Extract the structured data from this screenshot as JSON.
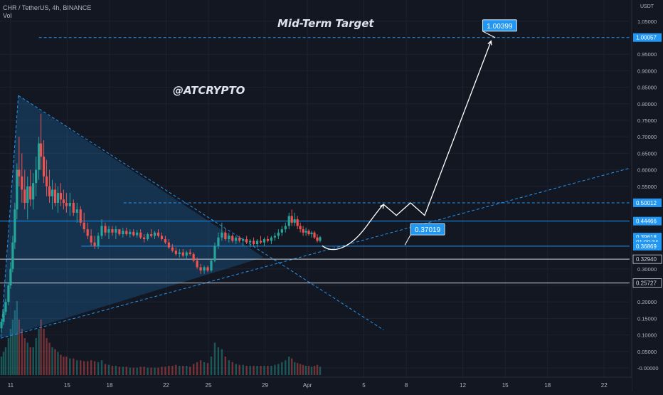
{
  "header": {
    "symbol_line": "CHR / TetherUS, 4h, BINANCE",
    "vol_label": "Vol"
  },
  "watermarks": {
    "title": "Mid-Term Target",
    "handle": "@ATCRYPTO"
  },
  "colors": {
    "background": "#131722",
    "up": "#26a69a",
    "down": "#ef5350",
    "drawing_blue": "#2196f3",
    "white": "#ffffff",
    "axis_text": "#b2b5be"
  },
  "chart_data": {
    "type": "candlestick",
    "xlabel": "",
    "ylabel": "USDT",
    "y_unit_label": "USDT",
    "ylim": [
      -0.02,
      1.1
    ],
    "y_ticks": [
      "1.05000",
      "0.95000",
      "0.90000",
      "0.85000",
      "0.80000",
      "0.75000",
      "0.70000",
      "0.65000",
      "0.60000",
      "0.55000",
      "0.30000",
      "0.25000",
      "0.20000",
      "0.15000",
      "0.10000",
      "0.05000",
      "-0.00000"
    ],
    "y_tick_values": [
      1.05,
      0.95,
      0.9,
      0.85,
      0.8,
      0.75,
      0.7,
      0.65,
      0.6,
      0.55,
      0.3,
      0.25,
      0.2,
      0.15,
      0.1,
      0.05,
      0.0
    ],
    "x_ticks": [
      {
        "label": "11",
        "day": 11
      },
      {
        "label": "15",
        "day": 15
      },
      {
        "label": "18",
        "day": 18
      },
      {
        "label": "22",
        "day": 22
      },
      {
        "label": "25",
        "day": 25
      },
      {
        "label": "29",
        "day": 29
      },
      {
        "label": "Apr",
        "day": 32
      },
      {
        "label": "5",
        "day": 36
      },
      {
        "label": "8",
        "day": 39
      },
      {
        "label": "12",
        "day": 43
      },
      {
        "label": "15",
        "day": 46
      },
      {
        "label": "18",
        "day": 49
      },
      {
        "label": "22",
        "day": 53
      }
    ],
    "x_day_range": [
      10.25,
      54.8
    ],
    "price_labels": [
      {
        "text": "1.00057",
        "value": 1.00057,
        "style": "blue"
      },
      {
        "text": "0.50012",
        "value": 0.50012,
        "style": "blue"
      },
      {
        "text": "0.44466",
        "value": 0.44466,
        "style": "blue"
      },
      {
        "text": "0.39618",
        "value": 0.39618,
        "style": "blue"
      },
      {
        "text": "01:00:34",
        "value": 0.382,
        "style": "blue"
      },
      {
        "text": "0.36869",
        "value": 0.36869,
        "style": "blue"
      },
      {
        "text": "0.32940",
        "value": 0.3294,
        "style": "white"
      },
      {
        "text": "0.25727",
        "value": 0.25727,
        "style": "white"
      }
    ],
    "annotations": [
      {
        "text": "1.00399",
        "price": 1.00399,
        "box_day": 44.5,
        "box_price": 1.037,
        "anchor_day": 45.3,
        "anchor_price": 1.0
      },
      {
        "text": "0.37019",
        "price": 0.37019,
        "box_day": 39.4,
        "box_price": 0.42,
        "anchor_day": 38.9,
        "anchor_price": 0.372
      }
    ],
    "horizontal_levels": [
      {
        "price": 1.00057,
        "style": "blue-dashed",
        "from_day": 13.0
      },
      {
        "price": 0.50012,
        "style": "blue-dashed",
        "from_day": 19.0
      },
      {
        "price": 0.44466,
        "style": "blue-solid",
        "from_day": 10.25
      },
      {
        "price": 0.36869,
        "style": "blue-solid",
        "from_day": 16.0
      },
      {
        "price": 0.3294,
        "style": "white-solid",
        "from_day": 10.25
      },
      {
        "price": 0.25727,
        "style": "white-solid",
        "from_day": 10.25
      }
    ],
    "candles": [
      {
        "d": 10.35,
        "o": 0.12,
        "h": 0.15,
        "l": 0.105,
        "c": 0.14,
        "v": 0.02
      },
      {
        "d": 10.5,
        "o": 0.14,
        "h": 0.18,
        "l": 0.13,
        "c": 0.17,
        "v": 0.025
      },
      {
        "d": 10.65,
        "o": 0.17,
        "h": 0.21,
        "l": 0.16,
        "c": 0.2,
        "v": 0.03
      },
      {
        "d": 10.85,
        "o": 0.2,
        "h": 0.26,
        "l": 0.19,
        "c": 0.25,
        "v": 0.04
      },
      {
        "d": 11.0,
        "o": 0.25,
        "h": 0.32,
        "l": 0.24,
        "c": 0.3,
        "v": 0.05
      },
      {
        "d": 11.15,
        "o": 0.3,
        "h": 0.4,
        "l": 0.29,
        "c": 0.38,
        "v": 0.06
      },
      {
        "d": 11.3,
        "o": 0.38,
        "h": 0.5,
        "l": 0.36,
        "c": 0.48,
        "v": 0.07
      },
      {
        "d": 11.45,
        "o": 0.48,
        "h": 0.62,
        "l": 0.45,
        "c": 0.6,
        "v": 0.08
      },
      {
        "d": 11.6,
        "o": 0.6,
        "h": 0.7,
        "l": 0.55,
        "c": 0.58,
        "v": 0.06
      },
      {
        "d": 11.8,
        "o": 0.58,
        "h": 0.65,
        "l": 0.5,
        "c": 0.54,
        "v": 0.05
      },
      {
        "d": 12.0,
        "o": 0.54,
        "h": 0.6,
        "l": 0.48,
        "c": 0.5,
        "v": 0.04
      },
      {
        "d": 12.2,
        "o": 0.5,
        "h": 0.58,
        "l": 0.45,
        "c": 0.55,
        "v": 0.035
      },
      {
        "d": 12.4,
        "o": 0.55,
        "h": 0.6,
        "l": 0.49,
        "c": 0.51,
        "v": 0.03
      },
      {
        "d": 12.6,
        "o": 0.51,
        "h": 0.59,
        "l": 0.48,
        "c": 0.56,
        "v": 0.03
      },
      {
        "d": 12.8,
        "o": 0.56,
        "h": 0.64,
        "l": 0.52,
        "c": 0.6,
        "v": 0.04
      },
      {
        "d": 13.0,
        "o": 0.6,
        "h": 0.7,
        "l": 0.57,
        "c": 0.68,
        "v": 0.05
      },
      {
        "d": 13.15,
        "o": 0.68,
        "h": 0.77,
        "l": 0.6,
        "c": 0.64,
        "v": 0.06
      },
      {
        "d": 13.35,
        "o": 0.64,
        "h": 0.69,
        "l": 0.56,
        "c": 0.58,
        "v": 0.05
      },
      {
        "d": 13.55,
        "o": 0.58,
        "h": 0.63,
        "l": 0.52,
        "c": 0.55,
        "v": 0.04
      },
      {
        "d": 13.75,
        "o": 0.55,
        "h": 0.6,
        "l": 0.5,
        "c": 0.52,
        "v": 0.035
      },
      {
        "d": 13.95,
        "o": 0.52,
        "h": 0.57,
        "l": 0.48,
        "c": 0.54,
        "v": 0.03
      },
      {
        "d": 14.15,
        "o": 0.54,
        "h": 0.56,
        "l": 0.49,
        "c": 0.5,
        "v": 0.028
      },
      {
        "d": 14.35,
        "o": 0.5,
        "h": 0.55,
        "l": 0.47,
        "c": 0.53,
        "v": 0.025
      },
      {
        "d": 14.55,
        "o": 0.53,
        "h": 0.56,
        "l": 0.49,
        "c": 0.51,
        "v": 0.022
      },
      {
        "d": 14.75,
        "o": 0.51,
        "h": 0.54,
        "l": 0.48,
        "c": 0.5,
        "v": 0.02
      },
      {
        "d": 14.95,
        "o": 0.5,
        "h": 0.53,
        "l": 0.47,
        "c": 0.49,
        "v": 0.02
      },
      {
        "d": 15.2,
        "o": 0.49,
        "h": 0.53,
        "l": 0.46,
        "c": 0.5,
        "v": 0.018
      },
      {
        "d": 15.45,
        "o": 0.5,
        "h": 0.51,
        "l": 0.46,
        "c": 0.47,
        "v": 0.018
      },
      {
        "d": 15.7,
        "o": 0.47,
        "h": 0.5,
        "l": 0.44,
        "c": 0.48,
        "v": 0.016
      },
      {
        "d": 15.95,
        "o": 0.48,
        "h": 0.49,
        "l": 0.43,
        "c": 0.44,
        "v": 0.016
      },
      {
        "d": 16.2,
        "o": 0.44,
        "h": 0.47,
        "l": 0.41,
        "c": 0.42,
        "v": 0.015
      },
      {
        "d": 16.45,
        "o": 0.42,
        "h": 0.44,
        "l": 0.39,
        "c": 0.4,
        "v": 0.015
      },
      {
        "d": 16.7,
        "o": 0.4,
        "h": 0.42,
        "l": 0.37,
        "c": 0.38,
        "v": 0.016
      },
      {
        "d": 16.95,
        "o": 0.38,
        "h": 0.4,
        "l": 0.36,
        "c": 0.37,
        "v": 0.015
      },
      {
        "d": 17.2,
        "o": 0.37,
        "h": 0.41,
        "l": 0.36,
        "c": 0.4,
        "v": 0.014
      },
      {
        "d": 17.45,
        "o": 0.4,
        "h": 0.45,
        "l": 0.39,
        "c": 0.43,
        "v": 0.016
      },
      {
        "d": 17.7,
        "o": 0.43,
        "h": 0.44,
        "l": 0.4,
        "c": 0.41,
        "v": 0.012
      },
      {
        "d": 17.95,
        "o": 0.41,
        "h": 0.43,
        "l": 0.39,
        "c": 0.42,
        "v": 0.011
      },
      {
        "d": 18.2,
        "o": 0.42,
        "h": 0.43,
        "l": 0.4,
        "c": 0.41,
        "v": 0.01
      },
      {
        "d": 18.45,
        "o": 0.41,
        "h": 0.43,
        "l": 0.39,
        "c": 0.42,
        "v": 0.01
      },
      {
        "d": 18.7,
        "o": 0.42,
        "h": 0.42,
        "l": 0.4,
        "c": 0.405,
        "v": 0.009
      },
      {
        "d": 18.95,
        "o": 0.405,
        "h": 0.425,
        "l": 0.395,
        "c": 0.415,
        "v": 0.009
      },
      {
        "d": 19.2,
        "o": 0.415,
        "h": 0.425,
        "l": 0.4,
        "c": 0.405,
        "v": 0.009
      },
      {
        "d": 19.45,
        "o": 0.405,
        "h": 0.42,
        "l": 0.395,
        "c": 0.412,
        "v": 0.008
      },
      {
        "d": 19.7,
        "o": 0.412,
        "h": 0.42,
        "l": 0.398,
        "c": 0.402,
        "v": 0.008
      },
      {
        "d": 19.95,
        "o": 0.402,
        "h": 0.418,
        "l": 0.395,
        "c": 0.41,
        "v": 0.008
      },
      {
        "d": 20.2,
        "o": 0.41,
        "h": 0.42,
        "l": 0.39,
        "c": 0.395,
        "v": 0.009
      },
      {
        "d": 20.45,
        "o": 0.395,
        "h": 0.405,
        "l": 0.38,
        "c": 0.39,
        "v": 0.009
      },
      {
        "d": 20.7,
        "o": 0.39,
        "h": 0.41,
        "l": 0.385,
        "c": 0.405,
        "v": 0.008
      },
      {
        "d": 20.95,
        "o": 0.405,
        "h": 0.42,
        "l": 0.395,
        "c": 0.4,
        "v": 0.008
      },
      {
        "d": 21.2,
        "o": 0.4,
        "h": 0.415,
        "l": 0.39,
        "c": 0.41,
        "v": 0.008
      },
      {
        "d": 21.45,
        "o": 0.41,
        "h": 0.42,
        "l": 0.395,
        "c": 0.4,
        "v": 0.008
      },
      {
        "d": 21.7,
        "o": 0.4,
        "h": 0.41,
        "l": 0.385,
        "c": 0.39,
        "v": 0.009
      },
      {
        "d": 21.95,
        "o": 0.39,
        "h": 0.4,
        "l": 0.375,
        "c": 0.38,
        "v": 0.009
      },
      {
        "d": 22.2,
        "o": 0.38,
        "h": 0.39,
        "l": 0.36,
        "c": 0.365,
        "v": 0.01
      },
      {
        "d": 22.45,
        "o": 0.365,
        "h": 0.375,
        "l": 0.35,
        "c": 0.355,
        "v": 0.01
      },
      {
        "d": 22.7,
        "o": 0.355,
        "h": 0.365,
        "l": 0.34,
        "c": 0.345,
        "v": 0.011
      },
      {
        "d": 22.95,
        "o": 0.345,
        "h": 0.36,
        "l": 0.335,
        "c": 0.35,
        "v": 0.01
      },
      {
        "d": 23.2,
        "o": 0.35,
        "h": 0.36,
        "l": 0.335,
        "c": 0.34,
        "v": 0.01
      },
      {
        "d": 23.45,
        "o": 0.34,
        "h": 0.355,
        "l": 0.33,
        "c": 0.35,
        "v": 0.01
      },
      {
        "d": 23.7,
        "o": 0.35,
        "h": 0.36,
        "l": 0.34,
        "c": 0.345,
        "v": 0.009
      },
      {
        "d": 23.95,
        "o": 0.345,
        "h": 0.35,
        "l": 0.32,
        "c": 0.325,
        "v": 0.012
      },
      {
        "d": 24.2,
        "o": 0.325,
        "h": 0.335,
        "l": 0.3,
        "c": 0.305,
        "v": 0.014
      },
      {
        "d": 24.45,
        "o": 0.305,
        "h": 0.315,
        "l": 0.285,
        "c": 0.295,
        "v": 0.016
      },
      {
        "d": 24.7,
        "o": 0.295,
        "h": 0.31,
        "l": 0.285,
        "c": 0.305,
        "v": 0.014
      },
      {
        "d": 24.95,
        "o": 0.305,
        "h": 0.31,
        "l": 0.29,
        "c": 0.295,
        "v": 0.013
      },
      {
        "d": 25.2,
        "o": 0.295,
        "h": 0.33,
        "l": 0.29,
        "c": 0.325,
        "v": 0.02
      },
      {
        "d": 25.45,
        "o": 0.325,
        "h": 0.38,
        "l": 0.32,
        "c": 0.37,
        "v": 0.035
      },
      {
        "d": 25.7,
        "o": 0.37,
        "h": 0.41,
        "l": 0.36,
        "c": 0.395,
        "v": 0.03
      },
      {
        "d": 25.95,
        "o": 0.395,
        "h": 0.44,
        "l": 0.385,
        "c": 0.41,
        "v": 0.028
      },
      {
        "d": 26.2,
        "o": 0.41,
        "h": 0.42,
        "l": 0.385,
        "c": 0.39,
        "v": 0.02
      },
      {
        "d": 26.45,
        "o": 0.39,
        "h": 0.41,
        "l": 0.38,
        "c": 0.4,
        "v": 0.016
      },
      {
        "d": 26.7,
        "o": 0.4,
        "h": 0.405,
        "l": 0.38,
        "c": 0.385,
        "v": 0.014
      },
      {
        "d": 26.95,
        "o": 0.385,
        "h": 0.4,
        "l": 0.375,
        "c": 0.395,
        "v": 0.012
      },
      {
        "d": 27.2,
        "o": 0.395,
        "h": 0.4,
        "l": 0.38,
        "c": 0.385,
        "v": 0.011
      },
      {
        "d": 27.45,
        "o": 0.385,
        "h": 0.395,
        "l": 0.37,
        "c": 0.39,
        "v": 0.011
      },
      {
        "d": 27.7,
        "o": 0.39,
        "h": 0.4,
        "l": 0.375,
        "c": 0.38,
        "v": 0.01
      },
      {
        "d": 27.95,
        "o": 0.38,
        "h": 0.39,
        "l": 0.365,
        "c": 0.385,
        "v": 0.01
      },
      {
        "d": 28.2,
        "o": 0.385,
        "h": 0.395,
        "l": 0.37,
        "c": 0.375,
        "v": 0.01
      },
      {
        "d": 28.45,
        "o": 0.375,
        "h": 0.39,
        "l": 0.365,
        "c": 0.385,
        "v": 0.01
      },
      {
        "d": 28.7,
        "o": 0.385,
        "h": 0.4,
        "l": 0.375,
        "c": 0.38,
        "v": 0.01
      },
      {
        "d": 28.95,
        "o": 0.38,
        "h": 0.395,
        "l": 0.37,
        "c": 0.39,
        "v": 0.01
      },
      {
        "d": 29.2,
        "o": 0.39,
        "h": 0.4,
        "l": 0.38,
        "c": 0.385,
        "v": 0.01
      },
      {
        "d": 29.45,
        "o": 0.385,
        "h": 0.4,
        "l": 0.375,
        "c": 0.395,
        "v": 0.01
      },
      {
        "d": 29.7,
        "o": 0.395,
        "h": 0.41,
        "l": 0.385,
        "c": 0.4,
        "v": 0.011
      },
      {
        "d": 29.95,
        "o": 0.4,
        "h": 0.42,
        "l": 0.39,
        "c": 0.41,
        "v": 0.012
      },
      {
        "d": 30.2,
        "o": 0.41,
        "h": 0.43,
        "l": 0.4,
        "c": 0.42,
        "v": 0.014
      },
      {
        "d": 30.45,
        "o": 0.42,
        "h": 0.44,
        "l": 0.41,
        "c": 0.43,
        "v": 0.016
      },
      {
        "d": 30.7,
        "o": 0.43,
        "h": 0.47,
        "l": 0.42,
        "c": 0.46,
        "v": 0.02
      },
      {
        "d": 30.9,
        "o": 0.46,
        "h": 0.48,
        "l": 0.43,
        "c": 0.44,
        "v": 0.018
      },
      {
        "d": 31.1,
        "o": 0.44,
        "h": 0.47,
        "l": 0.43,
        "c": 0.45,
        "v": 0.014
      },
      {
        "d": 31.3,
        "o": 0.45,
        "h": 0.46,
        "l": 0.42,
        "c": 0.43,
        "v": 0.013
      },
      {
        "d": 31.5,
        "o": 0.43,
        "h": 0.44,
        "l": 0.41,
        "c": 0.42,
        "v": 0.012
      },
      {
        "d": 31.7,
        "o": 0.42,
        "h": 0.43,
        "l": 0.4,
        "c": 0.41,
        "v": 0.011
      },
      {
        "d": 31.9,
        "o": 0.41,
        "h": 0.425,
        "l": 0.4,
        "c": 0.415,
        "v": 0.01
      },
      {
        "d": 32.1,
        "o": 0.415,
        "h": 0.42,
        "l": 0.4,
        "c": 0.405,
        "v": 0.01
      },
      {
        "d": 32.3,
        "o": 0.405,
        "h": 0.415,
        "l": 0.395,
        "c": 0.41,
        "v": 0.009
      },
      {
        "d": 32.5,
        "o": 0.41,
        "h": 0.415,
        "l": 0.39,
        "c": 0.395,
        "v": 0.01
      },
      {
        "d": 32.7,
        "o": 0.395,
        "h": 0.405,
        "l": 0.38,
        "c": 0.385,
        "v": 0.011
      },
      {
        "d": 32.9,
        "o": 0.385,
        "h": 0.4,
        "l": 0.38,
        "c": 0.396,
        "v": 0.009
      }
    ]
  }
}
